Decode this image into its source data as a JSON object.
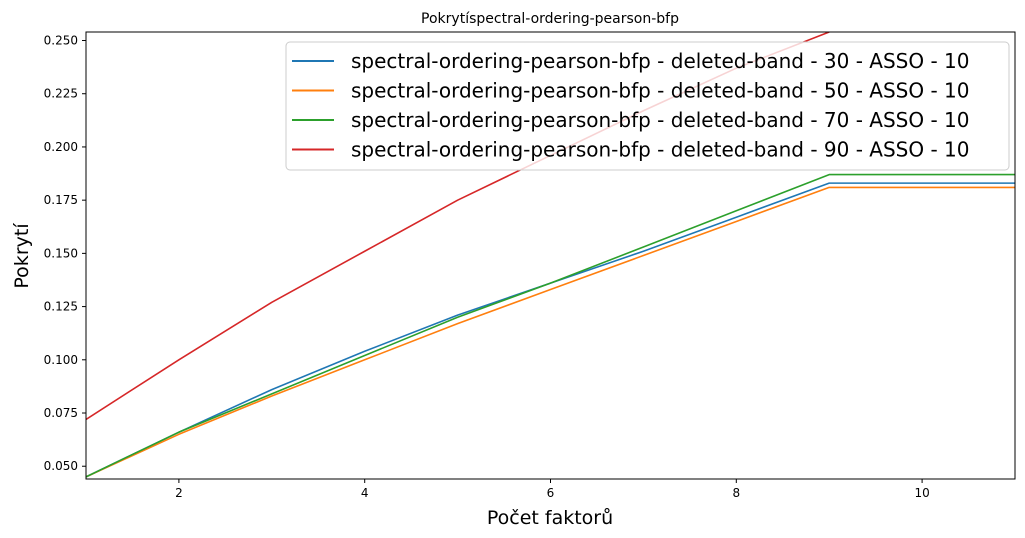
{
  "chart_data": {
    "type": "line",
    "title": "Pokrytíspectral-ordering-pearson-bfp",
    "xlabel": "Počet faktorů",
    "ylabel": "Pokrytí",
    "xlim": [
      1,
      11
    ],
    "ylim": [
      0.044,
      0.254
    ],
    "xticks": [
      2,
      4,
      6,
      8,
      10
    ],
    "yticks": [
      0.05,
      0.075,
      0.1,
      0.125,
      0.15,
      0.175,
      0.2,
      0.225,
      0.25
    ],
    "ytick_labels": [
      "0.050",
      "0.075",
      "0.100",
      "0.125",
      "0.150",
      "0.175",
      "0.200",
      "0.225",
      "0.250"
    ],
    "grid": false,
    "legend_position": "top-right",
    "series": [
      {
        "name": "spectral-ordering-pearson-bfp - deleted-band - 30 - ASSO - 10",
        "color": "#1f77b4",
        "x": [
          1,
          2,
          3,
          4,
          5,
          6,
          7,
          8,
          9,
          10,
          11
        ],
        "y": [
          0.045,
          0.066,
          0.086,
          0.104,
          0.121,
          0.136,
          0.151,
          0.167,
          0.183,
          0.183,
          0.183
        ]
      },
      {
        "name": "spectral-ordering-pearson-bfp - deleted-band - 50 - ASSO - 10",
        "color": "#ff7f0e",
        "x": [
          1,
          2,
          3,
          4,
          5,
          6,
          7,
          8,
          9,
          10,
          11
        ],
        "y": [
          0.045,
          0.065,
          0.083,
          0.1,
          0.117,
          0.133,
          0.149,
          0.165,
          0.181,
          0.181,
          0.181
        ]
      },
      {
        "name": "spectral-ordering-pearson-bfp - deleted-band - 70 - ASSO - 10",
        "color": "#2ca02c",
        "x": [
          1,
          2,
          3,
          4,
          5,
          6,
          7,
          8,
          9,
          10,
          11
        ],
        "y": [
          0.045,
          0.066,
          0.084,
          0.102,
          0.12,
          0.136,
          0.153,
          0.17,
          0.187,
          0.187,
          0.187
        ]
      },
      {
        "name": "spectral-ordering-pearson-bfp - deleted-band - 90 - ASSO - 10",
        "color": "#d62728",
        "x": [
          1,
          2,
          3,
          4,
          5,
          6,
          7,
          8,
          9
        ],
        "y": [
          0.072,
          0.1,
          0.127,
          0.151,
          0.175,
          0.196,
          0.217,
          0.237,
          0.254
        ]
      }
    ]
  }
}
